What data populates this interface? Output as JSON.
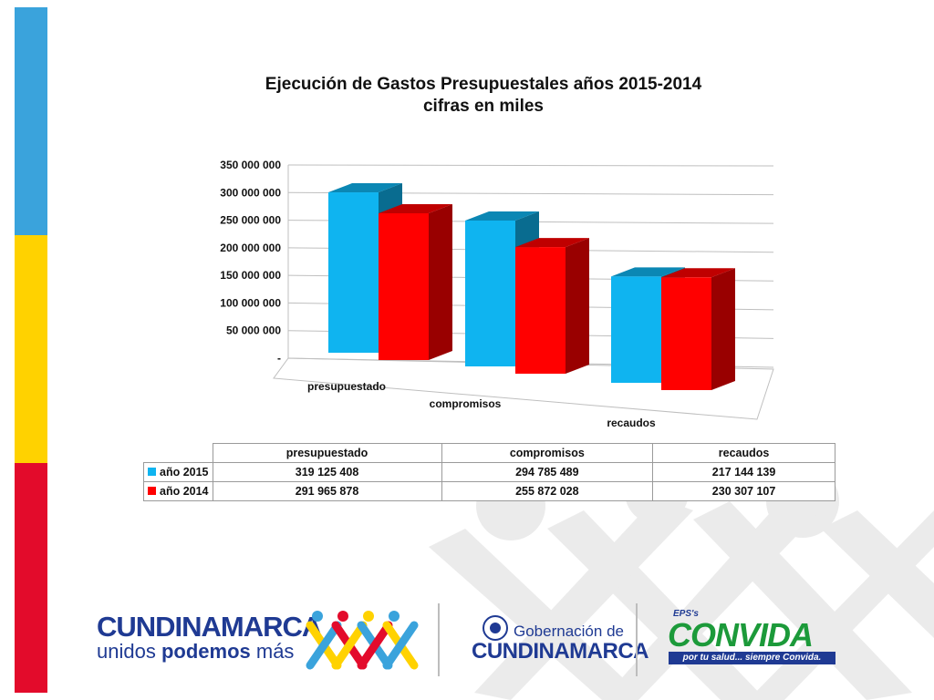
{
  "slide": {
    "stripe_colors": [
      "#3aa3dc",
      "#ffd200",
      "#e30b2b"
    ]
  },
  "chart_data": {
    "type": "bar",
    "title_line1": "Ejecución de Gastos Presupuestales años 2015-2014",
    "title_line2": "cifras en miles",
    "categories": [
      "presupuestado",
      "compromisos",
      "recaudos"
    ],
    "series": [
      {
        "name": "año 2015",
        "color": "#0fb4f0",
        "values": [
          319125408,
          294785489,
          217144139
        ]
      },
      {
        "name": "año 2014",
        "color": "#ff0000",
        "values": [
          291965878,
          255872028,
          230307107
        ]
      }
    ],
    "ylim": [
      0,
      350000000
    ],
    "yticks": [
      {
        "value": 0,
        "label": "-"
      },
      {
        "value": 50000000,
        "label": "50 000 000"
      },
      {
        "value": 100000000,
        "label": "100 000 000"
      },
      {
        "value": 150000000,
        "label": "150 000 000"
      },
      {
        "value": 200000000,
        "label": "200 000 000"
      },
      {
        "value": 250000000,
        "label": "250 000 000"
      },
      {
        "value": 300000000,
        "label": "300 000 000"
      },
      {
        "value": 350000000,
        "label": "350 000 000"
      }
    ],
    "grid": true,
    "style": "3d-clustered-column",
    "table": {
      "headers": [
        "presupuestado",
        "compromisos",
        "recaudos"
      ],
      "rows": [
        {
          "series": "año 2015",
          "values": [
            "319 125 408",
            "294 785 489",
            "217 144 139"
          ]
        },
        {
          "series": "año 2014",
          "values": [
            "291 965 878",
            "255 872 028",
            "230 307 107"
          ]
        }
      ]
    }
  },
  "logos": {
    "cundinamarca": "CUNDINAMARCA",
    "cundinamarca_sub_plain": "unidos ",
    "cundinamarca_sub_bold": "podemos",
    "cundinamarca_sub_end": " más",
    "gobernacion_small": "Gobernación de",
    "gobernacion_big": "CUNDINAMARCA",
    "eps": "EPS's",
    "convida": "CONVIDA",
    "convida_tagline": "por tu salud... siempre Convida."
  }
}
